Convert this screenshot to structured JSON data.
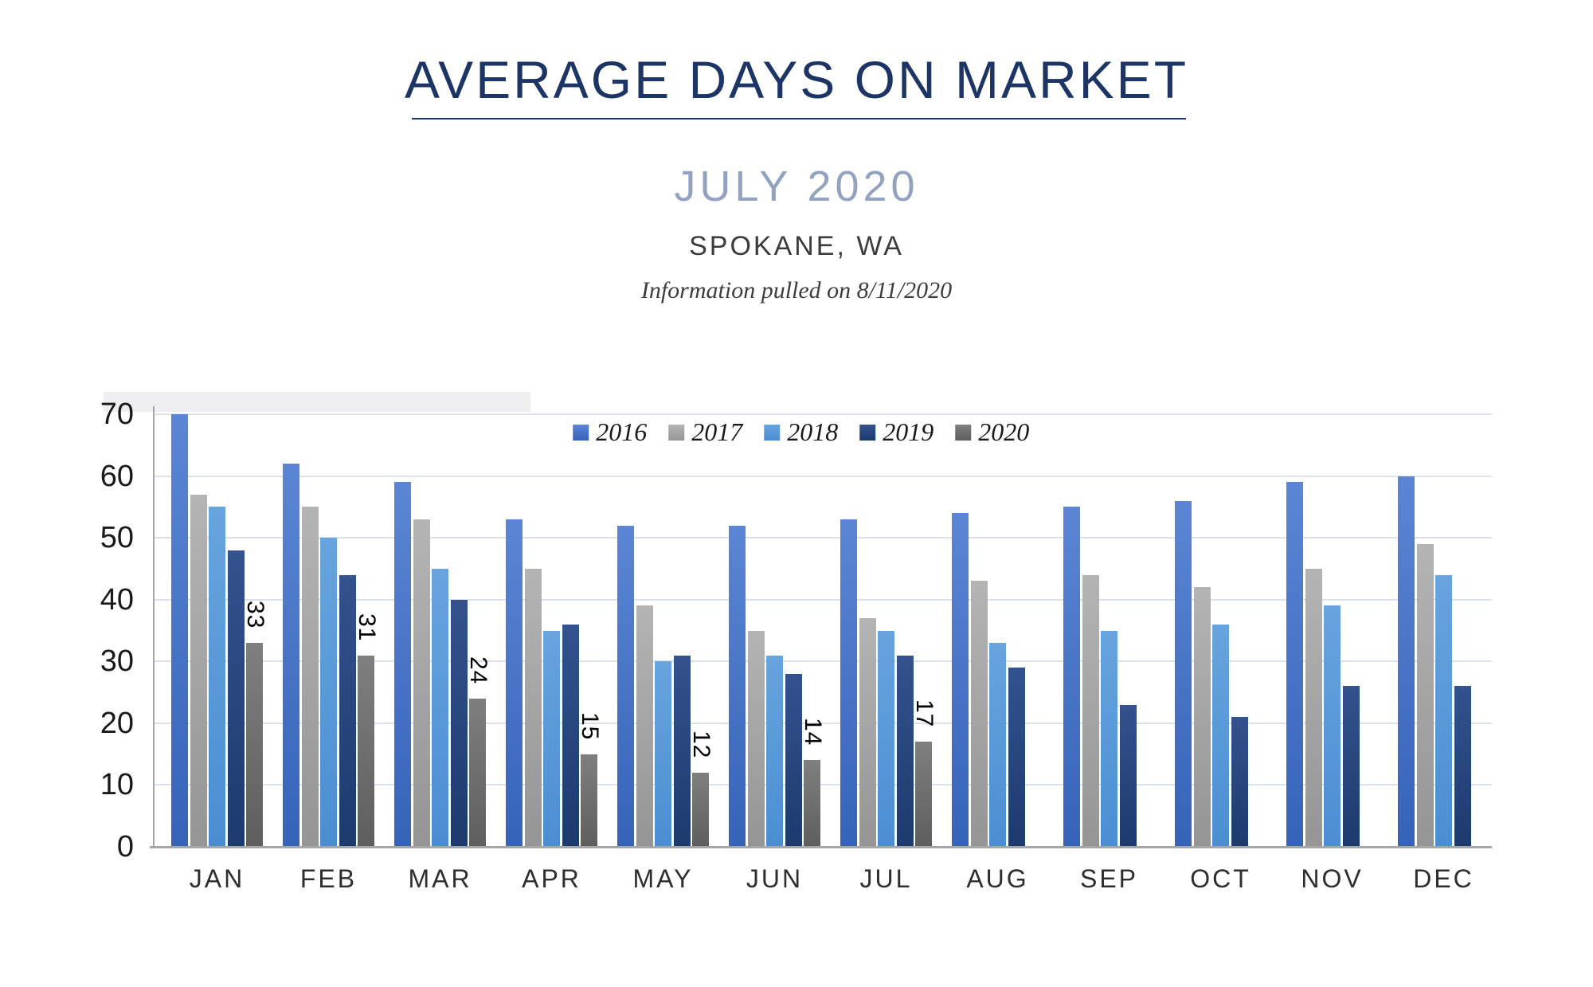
{
  "header": {
    "title": "AVERAGE DAYS ON MARKET",
    "subtitle": "JULY 2020",
    "location": "SPOKANE, WA",
    "info_note": "Information pulled on 8/11/2020"
  },
  "colors": {
    "title_navy": "#1c3566",
    "subtitle_gray_blue": "#92a2c0",
    "location_gray": "#3c3c3c",
    "info_gray": "#3d3d3d",
    "grid_line": "#dce1eb",
    "axis_line": "#a6a6a6",
    "tick_text": "#1a1a1a",
    "category_text": "#2e2e2e",
    "value_label_text": "#000000"
  },
  "chart_data": {
    "type": "bar",
    "title": "AVERAGE DAYS ON MARKET",
    "subtitle": "JULY 2020",
    "categories": [
      "JAN",
      "FEB",
      "MAR",
      "APR",
      "MAY",
      "JUN",
      "JUL",
      "AUG",
      "SEP",
      "OCT",
      "NOV",
      "DEC"
    ],
    "series": [
      {
        "name": "2016",
        "color": "#4472C4",
        "color_light": "#5b86d5",
        "color_dark": "#3563b8",
        "values": [
          70,
          62,
          59,
          53,
          52,
          52,
          53,
          54,
          55,
          56,
          59,
          60
        ]
      },
      {
        "name": "2017",
        "color": "#A6A6A6",
        "color_light": "#b4b4b4",
        "color_dark": "#959595",
        "values": [
          57,
          55,
          53,
          45,
          39,
          35,
          37,
          43,
          44,
          42,
          45,
          49
        ]
      },
      {
        "name": "2018",
        "color": "#5B9BD5",
        "color_light": "#68a4de",
        "color_dark": "#4a8ed2",
        "values": [
          55,
          50,
          45,
          35,
          30,
          31,
          35,
          33,
          35,
          36,
          39,
          44
        ]
      },
      {
        "name": "2019",
        "color": "#264478",
        "color_light": "#33528e",
        "color_dark": "#1d3a6d",
        "values": [
          48,
          44,
          40,
          36,
          31,
          28,
          31,
          29,
          23,
          21,
          26,
          26
        ]
      },
      {
        "name": "2020",
        "color": "#6E6E6E",
        "color_light": "#7f7f7f",
        "color_dark": "#5e5e5e",
        "values": [
          33,
          31,
          24,
          15,
          12,
          14,
          17,
          null,
          null,
          null,
          null,
          null
        ],
        "show_value_labels": true
      }
    ],
    "xlabel": "",
    "ylabel": "",
    "ylim": [
      0,
      70
    ],
    "yticks": [
      0,
      10,
      20,
      30,
      40,
      50,
      60,
      70
    ],
    "grid": true,
    "legend_position": "top-center",
    "value_label_rotation_deg": 90
  }
}
